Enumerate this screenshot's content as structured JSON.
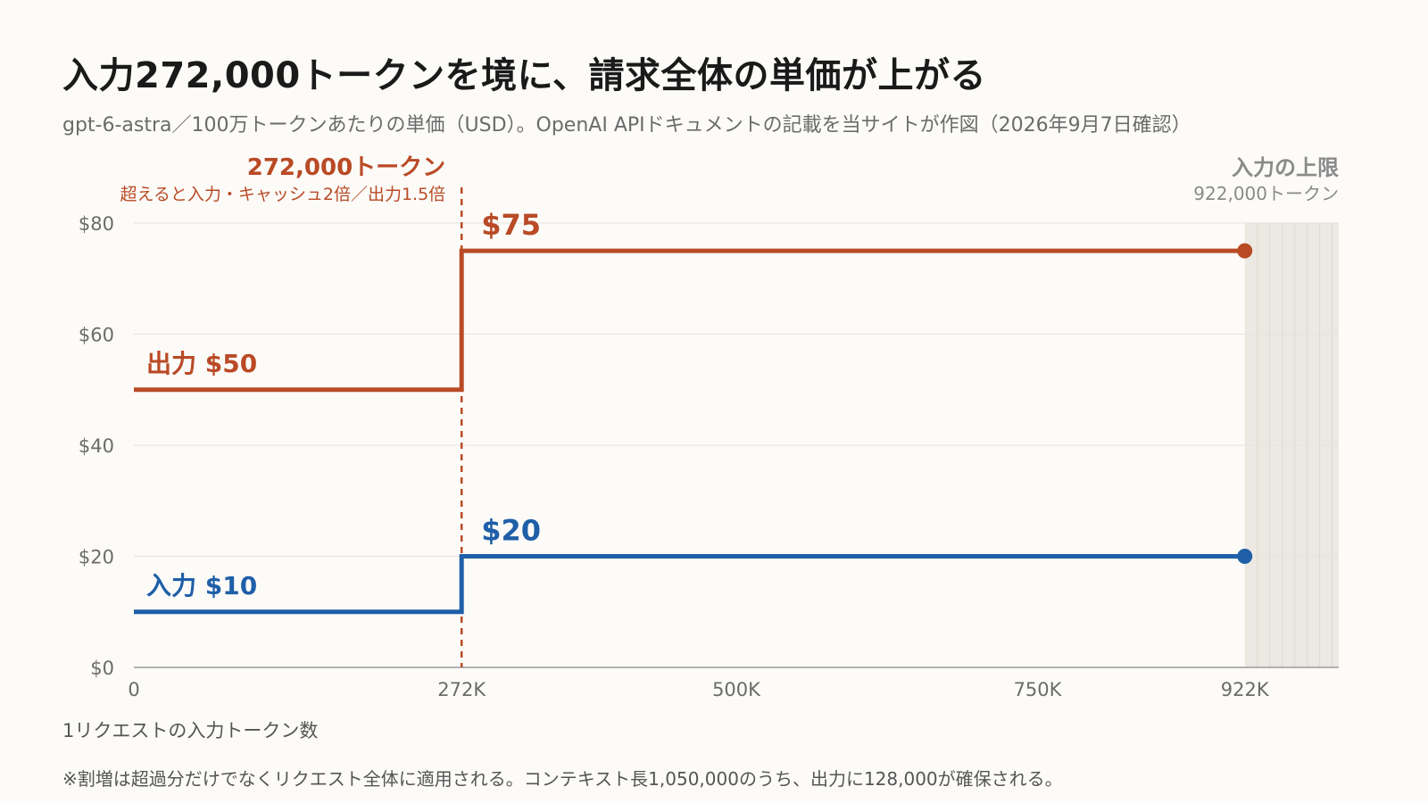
{
  "title": "入力272,000トークンを境に、請求全体の単価が上がる",
  "subtitle": "gpt-6-astra／100万トークンあたりの単価（USD）。OpenAI APIドキュメントの記載を当サイトが作図（2026年9月7日確認）",
  "footnote": "※割増は超過分だけでなくリクエスト全体に適用される。コンテキスト長1,050,000のうち、出力に128,000が確保される。",
  "colors": {
    "output": "#b94a25",
    "input": "#1f5fa8",
    "threshold": "#b94a25",
    "limit_band": "#ece9e2",
    "grid": "#e6e3dd",
    "axis": "#9a9a9a",
    "tick_text": "#6b6b6b"
  },
  "chart_data": {
    "type": "line",
    "step": true,
    "xlabel": "1リクエストの入力トークン数",
    "ylabel": "",
    "xlim": [
      0,
      1000000
    ],
    "ylim": [
      0,
      80
    ],
    "grid": true,
    "yticks": [
      0,
      20,
      40,
      60,
      80
    ],
    "ytick_labels": [
      "$0",
      "$20",
      "$40",
      "$60",
      "$80"
    ],
    "xticks": [
      0,
      272000,
      500000,
      750000,
      922000
    ],
    "xtick_labels": [
      "0",
      "272K",
      "500K",
      "750K",
      "922K"
    ],
    "series": [
      {
        "key": "output",
        "name": "出力",
        "points": [
          [
            0,
            50
          ],
          [
            272000,
            50
          ],
          [
            272000,
            75
          ],
          [
            922000,
            75
          ]
        ],
        "start_label": "出力 $50",
        "step_label": "$75"
      },
      {
        "key": "input",
        "name": "入力",
        "points": [
          [
            0,
            10
          ],
          [
            272000,
            10
          ],
          [
            272000,
            20
          ],
          [
            922000,
            20
          ]
        ],
        "start_label": "入力 $10",
        "step_label": "$20"
      }
    ],
    "threshold": {
      "x": 272000,
      "label": "272,000トークン",
      "sublabel": "超えると入力・キャッシュ2倍／出力1.5倍"
    },
    "limit": {
      "x": 922000,
      "label": "入力の上限",
      "sublabel": "922,000トークン"
    }
  }
}
